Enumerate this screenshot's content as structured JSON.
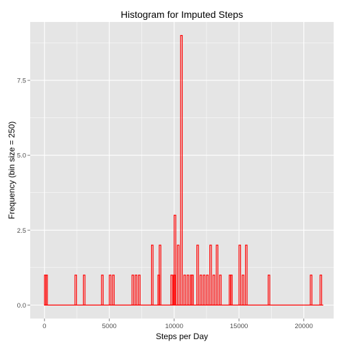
{
  "chart_data": {
    "type": "bar",
    "title": "Histogram for Imputed Steps",
    "xlabel": "Steps per Day",
    "ylabel": "Frequency (bin size = 250)",
    "xlim": [
      -1100,
      22300
    ],
    "ylim": [
      -0.45,
      9.45
    ],
    "bin_width": 250,
    "x_ticks": [
      {
        "value": 0,
        "label": "0"
      },
      {
        "value": 5000,
        "label": "5000"
      },
      {
        "value": 10000,
        "label": "10000"
      },
      {
        "value": 15000,
        "label": "15000"
      },
      {
        "value": 20000,
        "label": "20000"
      }
    ],
    "y_ticks": [
      {
        "value": 0,
        "label": "0.0"
      },
      {
        "value": 2.5,
        "label": "2.5"
      },
      {
        "value": 5,
        "label": "5.0"
      },
      {
        "value": 7.5,
        "label": "7.5"
      }
    ],
    "bar_color": "#ff0000",
    "panel_color": "#e5e5e5",
    "grid_color": "#ffffff",
    "bins": [
      {
        "start": 0,
        "count": 1
      },
      {
        "start": 3000,
        "count": 1
      },
      {
        "start": 5250,
        "count": 1
      },
      {
        "start": 7000,
        "count": 1
      },
      {
        "start": 8250,
        "count": 2
      },
      {
        "start": 8750,
        "count": 1
      },
      {
        "start": 9750,
        "count": 1
      },
      {
        "start": 10000,
        "count": 3
      },
      {
        "start": 10250,
        "count": 2
      },
      {
        "start": 10500,
        "count": 9
      },
      {
        "start": 10750,
        "count": 1
      },
      {
        "start": 11000,
        "count": 1
      },
      {
        "start": 11250,
        "count": 1
      },
      {
        "start": 11750,
        "count": 2
      },
      {
        "start": 12000,
        "count": 1
      },
      {
        "start": 12250,
        "count": 1
      },
      {
        "start": 12500,
        "count": 1
      },
      {
        "start": 12750,
        "count": 2
      },
      {
        "start": 13000,
        "count": 1
      },
      {
        "start": 13250,
        "count": 2
      },
      {
        "start": 13500,
        "count": 1
      },
      {
        "start": 14250,
        "count": 1
      },
      {
        "start": 15000,
        "count": 2
      },
      {
        "start": 15250,
        "count": 1
      },
      {
        "start": 15500,
        "count": 2
      },
      {
        "start": 17250,
        "count": 1
      },
      {
        "start": 20500,
        "count": 1
      },
      {
        "start": 21250,
        "count": 1
      },
      {
        "start": 100,
        "count": 1
      },
      {
        "start": 2350,
        "count": 1
      },
      {
        "start": 4400,
        "count": 1
      },
      {
        "start": 5000,
        "count": 1
      },
      {
        "start": 6750,
        "count": 1
      },
      {
        "start": 7250,
        "count": 1
      },
      {
        "start": 8850,
        "count": 2
      },
      {
        "start": 9950,
        "count": 1
      },
      {
        "start": 11350,
        "count": 1
      },
      {
        "start": 14350,
        "count": 1
      }
    ]
  }
}
